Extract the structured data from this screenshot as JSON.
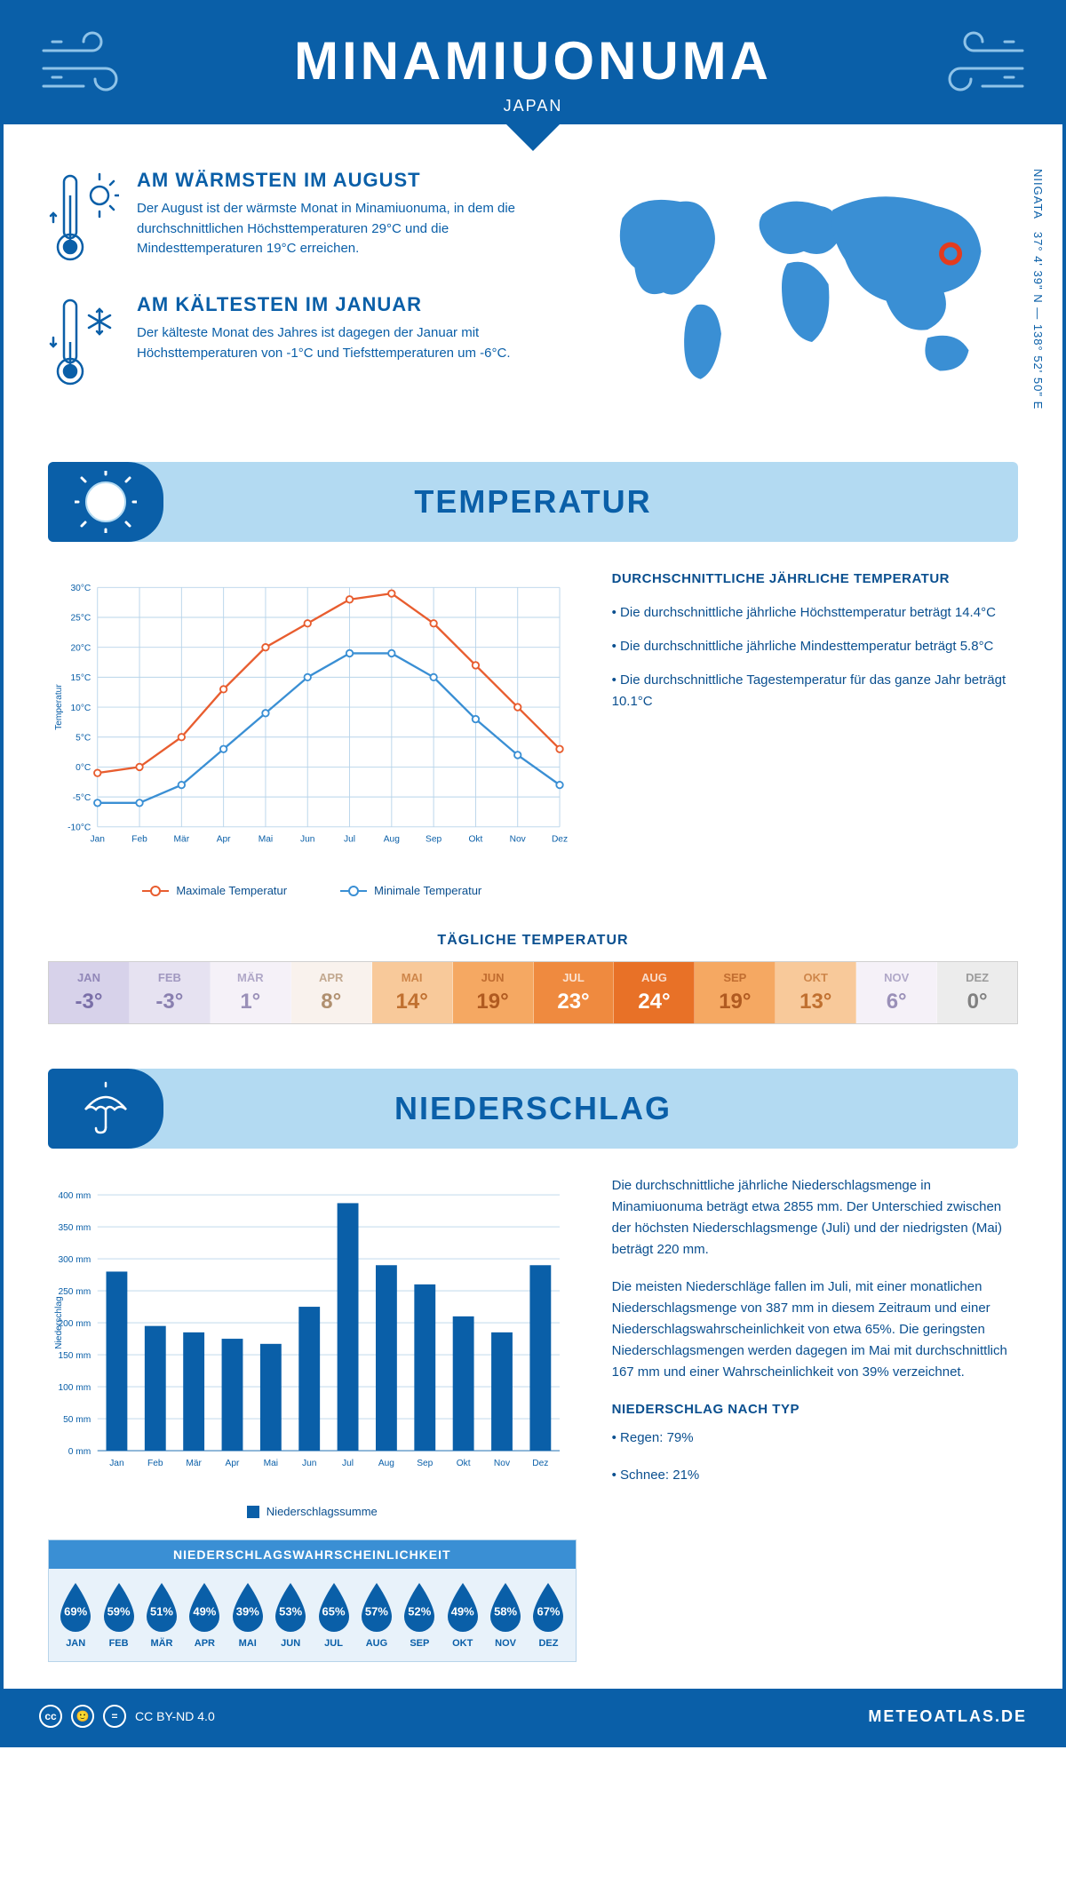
{
  "header": {
    "city": "MINAMIUONUMA",
    "country": "JAPAN"
  },
  "coords": {
    "region": "NIIGATA",
    "lat": "37° 4' 39\" N",
    "lon": "138° 52' 50\" E"
  },
  "facts": {
    "warm": {
      "title": "AM WÄRMSTEN IM AUGUST",
      "text": "Der August ist der wärmste Monat in Minamiuonuma, in dem die durchschnittlichen Höchsttemperaturen 29°C und die Mindesttemperaturen 19°C erreichen."
    },
    "cold": {
      "title": "AM KÄLTESTEN IM JANUAR",
      "text": "Der kälteste Monat des Jahres ist dagegen der Januar mit Höchsttemperaturen von -1°C und Tiefsttemperaturen um -6°C."
    }
  },
  "sections": {
    "temperature": "TEMPERATUR",
    "precipitation": "NIEDERSCHLAG"
  },
  "tempChart": {
    "type": "line",
    "months": [
      "Jan",
      "Feb",
      "Mär",
      "Apr",
      "Mai",
      "Jun",
      "Jul",
      "Aug",
      "Sep",
      "Okt",
      "Nov",
      "Dez"
    ],
    "max": [
      -1,
      0,
      5,
      13,
      20,
      24,
      28,
      29,
      24,
      17,
      10,
      3
    ],
    "min": [
      -6,
      -6,
      -3,
      3,
      9,
      15,
      19,
      19,
      15,
      8,
      2,
      -3
    ],
    "ylim": [
      -10,
      30
    ],
    "ytick_step": 5,
    "ylabel": "Temperatur",
    "colors": {
      "max": "#e85d2f",
      "min": "#3a8fd4",
      "grid": "#b8d4ea"
    },
    "legend": {
      "max": "Maximale Temperatur",
      "min": "Minimale Temperatur"
    }
  },
  "tempText": {
    "heading": "DURCHSCHNITTLICHE JÄHRLICHE TEMPERATUR",
    "l1": "• Die durchschnittliche jährliche Höchsttemperatur beträgt 14.4°C",
    "l2": "• Die durchschnittliche jährliche Mindesttemperatur beträgt 5.8°C",
    "l3": "• Die durchschnittliche Tagestemperatur für das ganze Jahr beträgt 10.1°C"
  },
  "daily": {
    "title": "TÄGLICHE TEMPERATUR",
    "months": [
      "JAN",
      "FEB",
      "MÄR",
      "APR",
      "MAI",
      "JUN",
      "JUL",
      "AUG",
      "SEP",
      "OKT",
      "NOV",
      "DEZ"
    ],
    "values": [
      "-3°",
      "-3°",
      "1°",
      "8°",
      "14°",
      "19°",
      "23°",
      "24°",
      "19°",
      "13°",
      "6°",
      "0°"
    ],
    "bg": [
      "#d7d2ea",
      "#e6e2f1",
      "#f5f1f8",
      "#f9f2ed",
      "#f8c99a",
      "#f5a862",
      "#ef8a3f",
      "#e87127",
      "#f5a862",
      "#f8c99a",
      "#f5f1f8",
      "#ececec"
    ],
    "fg": [
      "#7a6fa8",
      "#8a80b0",
      "#9a90b8",
      "#b09070",
      "#c07030",
      "#b05a20",
      "#ffffff",
      "#ffffff",
      "#b05a20",
      "#c07030",
      "#9a90b8",
      "#808080"
    ]
  },
  "precipChart": {
    "type": "bar",
    "months": [
      "Jan",
      "Feb",
      "Mär",
      "Apr",
      "Mai",
      "Jun",
      "Jul",
      "Aug",
      "Sep",
      "Okt",
      "Nov",
      "Dez"
    ],
    "values": [
      280,
      195,
      185,
      175,
      167,
      225,
      387,
      290,
      260,
      210,
      185,
      290
    ],
    "ylim": [
      0,
      400
    ],
    "ytick_step": 50,
    "ylabel": "Niederschlag",
    "bar_color": "#0a5fa8",
    "grid": "#b8d4ea",
    "legend": "Niederschlagssumme"
  },
  "precipText": {
    "p1": "Die durchschnittliche jährliche Niederschlagsmenge in Minamiuonuma beträgt etwa 2855 mm. Der Unterschied zwischen der höchsten Niederschlagsmenge (Juli) und der niedrigsten (Mai) beträgt 220 mm.",
    "p2": "Die meisten Niederschläge fallen im Juli, mit einer monatlichen Niederschlagsmenge von 387 mm in diesem Zeitraum und einer Niederschlagswahrscheinlichkeit von etwa 65%. Die geringsten Niederschlagsmengen werden dagegen im Mai mit durchschnittlich 167 mm und einer Wahrscheinlichkeit von 39% verzeichnet.",
    "typeHeading": "NIEDERSCHLAG NACH TYP",
    "t1": "• Regen: 79%",
    "t2": "• Schnee: 21%"
  },
  "prob": {
    "title": "NIEDERSCHLAGSWAHRSCHEINLICHKEIT",
    "months": [
      "JAN",
      "FEB",
      "MÄR",
      "APR",
      "MAI",
      "JUN",
      "JUL",
      "AUG",
      "SEP",
      "OKT",
      "NOV",
      "DEZ"
    ],
    "pct": [
      "69%",
      "59%",
      "51%",
      "49%",
      "39%",
      "53%",
      "65%",
      "57%",
      "52%",
      "49%",
      "58%",
      "67%"
    ],
    "drop_color": "#0a5fa8"
  },
  "footer": {
    "license": "CC BY-ND 4.0",
    "brand": "METEOATLAS.DE"
  }
}
